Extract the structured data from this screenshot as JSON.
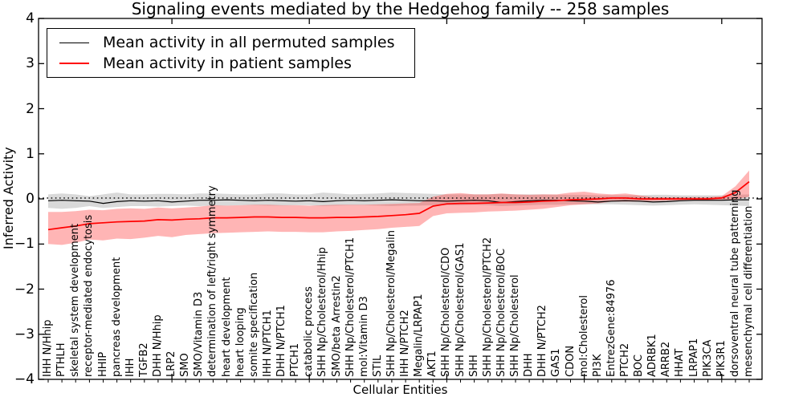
{
  "title": "Signaling events mediated by the Hedgehog family -- 258 samples",
  "legend": {
    "items": [
      {
        "label": "Mean activity in all permuted samples",
        "color": "#000000"
      },
      {
        "label": "Mean activity in patient samples",
        "color": "#ff0000"
      }
    ]
  },
  "chart_data": {
    "type": "line",
    "title": "Signaling events mediated by the Hedgehog family -- 258 samples",
    "xlabel": "Cellular Entities",
    "ylabel": "Inferred Activity",
    "ylim": [
      -4,
      4
    ],
    "yticks": [
      -4,
      -3,
      -2,
      -1,
      0,
      1,
      2,
      3,
      4
    ],
    "grid": false,
    "legend_position": "upper left",
    "reference_line": {
      "y": 0.02,
      "style": "dotted",
      "color": "#000000"
    },
    "categories": [
      "IHH N/Hhip",
      "PTHLH",
      "skeletal system development",
      "receptor-mediated endocytosis",
      "HHIP",
      "pancreas development",
      "IHH",
      "TGFB2",
      "DHH N/Hhip",
      "LRP2",
      "SMO",
      "SMO/Vitamin D3",
      "determination of left/right symmetry",
      "heart development",
      "heart looping",
      "somite specification",
      "IHH N/PTCH1",
      "DHH N/PTCH1",
      "PTCH1",
      "catabolic process",
      "SHH Np/Cholesterol/Hhip",
      "SMO/beta Arrestin2",
      "SHH Np/Cholesterol/PTCH1",
      "mol:Vitamin D3",
      "STIL",
      "SHH Np/Cholesterol/Megalin",
      "IHH N/PTCH2",
      "Megalin/LRPAP1",
      "AKT1",
      "SHH Np/Cholesterol/CDO",
      "SHH Np/Cholesterol/GAS1",
      "SHH",
      "SHH Np/Cholesterol/PTCH2",
      "SHH Np/Cholesterol/BOC",
      "SHH Np/Cholesterol",
      "DHH",
      "DHH N/PTCH2",
      "GAS1",
      "CDON",
      "mol:Cholesterol",
      "PI3K",
      "EntrezGene:84976",
      "PTCH2",
      "BOC",
      "ADRBK1",
      "ARRB2",
      "HHAT",
      "LRPAP1",
      "PIK3CA",
      "PIK3R1",
      "dorsoventral neural tube patterning",
      "mesenchymal cell differentiation"
    ],
    "series": [
      {
        "name": "Mean activity in all permuted samples",
        "color": "#000000",
        "band_color": "rgba(120,120,120,0.28)",
        "values": [
          -0.04,
          -0.03,
          -0.04,
          -0.05,
          -0.1,
          -0.06,
          -0.04,
          -0.05,
          -0.04,
          -0.07,
          -0.05,
          -0.03,
          -0.03,
          -0.02,
          -0.03,
          -0.04,
          -0.03,
          -0.04,
          -0.05,
          -0.04,
          -0.06,
          -0.04,
          -0.03,
          -0.04,
          -0.03,
          -0.02,
          -0.03,
          -0.04,
          -0.04,
          -0.05,
          -0.04,
          -0.03,
          -0.04,
          -0.08,
          -0.06,
          -0.04,
          -0.03,
          -0.03,
          -0.04,
          -0.05,
          -0.07,
          -0.05,
          -0.04,
          -0.05,
          -0.07,
          -0.06,
          -0.04,
          -0.03,
          -0.03,
          -0.03,
          -0.02,
          -0.02
        ],
        "band_upper": [
          0.1,
          0.12,
          0.1,
          0.06,
          0.1,
          0.14,
          0.1,
          0.1,
          0.11,
          0.11,
          0.1,
          0.12,
          0.12,
          0.11,
          0.1,
          0.1,
          0.12,
          0.12,
          0.1,
          0.1,
          0.14,
          0.12,
          0.1,
          0.11,
          0.12,
          0.14,
          0.13,
          0.12,
          0.11,
          0.1,
          0.1,
          0.1,
          0.1,
          0.11,
          0.1,
          0.1,
          0.1,
          0.09,
          0.09,
          0.09,
          0.08,
          0.08,
          0.08,
          0.08,
          0.09,
          0.09,
          0.08,
          0.08,
          0.08,
          0.08,
          0.09,
          0.1
        ],
        "band_lower": [
          -0.2,
          -0.22,
          -0.2,
          -0.16,
          -0.2,
          -0.18,
          -0.16,
          -0.16,
          -0.17,
          -0.16,
          -0.15,
          -0.16,
          -0.15,
          -0.15,
          -0.14,
          -0.14,
          -0.15,
          -0.15,
          -0.14,
          -0.14,
          -0.16,
          -0.15,
          -0.14,
          -0.14,
          -0.15,
          -0.16,
          -0.15,
          -0.15,
          -0.14,
          -0.14,
          -0.14,
          -0.13,
          -0.14,
          -0.16,
          -0.15,
          -0.14,
          -0.13,
          -0.13,
          -0.12,
          -0.12,
          -0.12,
          -0.12,
          -0.13,
          -0.14,
          -0.15,
          -0.14,
          -0.13,
          -0.12,
          -0.13,
          -0.14,
          -0.15,
          -0.16
        ]
      },
      {
        "name": "Mean activity in patient samples",
        "color": "#ff0000",
        "band_color": "rgba(255,60,60,0.38)",
        "values": [
          -0.68,
          -0.64,
          -0.6,
          -0.55,
          -0.53,
          -0.51,
          -0.5,
          -0.49,
          -0.46,
          -0.47,
          -0.45,
          -0.44,
          -0.42,
          -0.42,
          -0.41,
          -0.4,
          -0.4,
          -0.41,
          -0.41,
          -0.42,
          -0.42,
          -0.41,
          -0.41,
          -0.4,
          -0.39,
          -0.37,
          -0.35,
          -0.32,
          -0.16,
          -0.11,
          -0.1,
          -0.1,
          -0.09,
          -0.08,
          -0.08,
          -0.07,
          -0.05,
          -0.04,
          -0.02,
          -0.01,
          0.0,
          0.02,
          0.02,
          0.0,
          0.0,
          0.0,
          0.0,
          0.0,
          0.0,
          0.02,
          0.14,
          0.38
        ],
        "band_upper": [
          -0.29,
          -0.29,
          -0.27,
          -0.24,
          -0.25,
          -0.22,
          -0.21,
          -0.22,
          -0.19,
          -0.21,
          -0.19,
          -0.17,
          -0.14,
          -0.15,
          -0.14,
          -0.13,
          -0.13,
          -0.14,
          -0.14,
          -0.15,
          -0.14,
          -0.13,
          -0.13,
          -0.13,
          -0.12,
          -0.11,
          -0.1,
          -0.09,
          0.05,
          0.11,
          0.13,
          0.1,
          0.1,
          0.12,
          0.1,
          0.09,
          0.1,
          0.1,
          0.14,
          0.16,
          0.12,
          0.1,
          0.12,
          0.08,
          0.04,
          0.04,
          0.04,
          0.04,
          0.04,
          0.06,
          0.28,
          0.63
        ],
        "band_lower": [
          -1.0,
          -1.02,
          -0.97,
          -0.9,
          -0.92,
          -0.88,
          -0.89,
          -0.86,
          -0.82,
          -0.85,
          -0.8,
          -0.78,
          -0.76,
          -0.75,
          -0.74,
          -0.73,
          -0.72,
          -0.73,
          -0.73,
          -0.74,
          -0.74,
          -0.72,
          -0.71,
          -0.69,
          -0.67,
          -0.64,
          -0.62,
          -0.6,
          -0.38,
          -0.32,
          -0.31,
          -0.3,
          -0.28,
          -0.27,
          -0.26,
          -0.24,
          -0.22,
          -0.18,
          -0.14,
          -0.12,
          -0.1,
          -0.06,
          -0.06,
          -0.06,
          -0.05,
          -0.04,
          -0.04,
          -0.04,
          -0.04,
          -0.03,
          -0.01,
          0.05
        ]
      }
    ]
  }
}
